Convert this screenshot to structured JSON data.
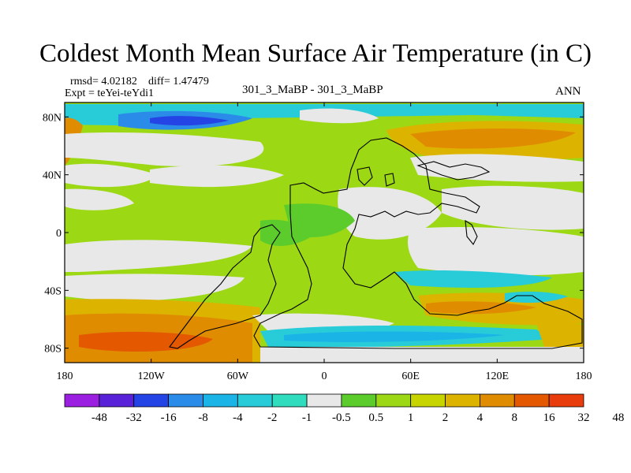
{
  "title": "Coldest Month Mean Surface Air Temperature (in C)",
  "stats": {
    "rmsd": "rmsd= 4.02182",
    "diff": "diff= 1.47479"
  },
  "expt": "Expt = teYei-teYdi1",
  "subtitle": "301_3_MaBP - 301_3_MaBP",
  "period": "ANN",
  "y_ticks": [
    {
      "label": "80N",
      "lat": 80
    },
    {
      "label": "40N",
      "lat": 40
    },
    {
      "label": "0",
      "lat": 0
    },
    {
      "label": "40S",
      "lat": -40
    },
    {
      "label": "80S",
      "lat": -80
    }
  ],
  "x_ticks": [
    {
      "label": "180",
      "lon": -180
    },
    {
      "label": "120W",
      "lon": -120
    },
    {
      "label": "60W",
      "lon": -60
    },
    {
      "label": "0",
      "lon": 0
    },
    {
      "label": "60E",
      "lon": 60
    },
    {
      "label": "120E",
      "lon": 120
    },
    {
      "label": "180",
      "lon": 180
    }
  ],
  "colorbar": {
    "colors": [
      "#9b1fe0",
      "#5a22d8",
      "#2444e6",
      "#2a8ce8",
      "#1ab4e6",
      "#28ccd8",
      "#30dcbe",
      "#e8e8e8",
      "#5ccc2c",
      "#9cd814",
      "#c8d400",
      "#dcb400",
      "#e08c00",
      "#e45800",
      "#e83c0c"
    ],
    "labels": [
      "-48",
      "-32",
      "-16",
      "-8",
      "-4",
      "-2",
      "-1",
      "-0.5",
      "0.5",
      "1",
      "2",
      "4",
      "8",
      "16",
      "32",
      "48"
    ]
  }
}
